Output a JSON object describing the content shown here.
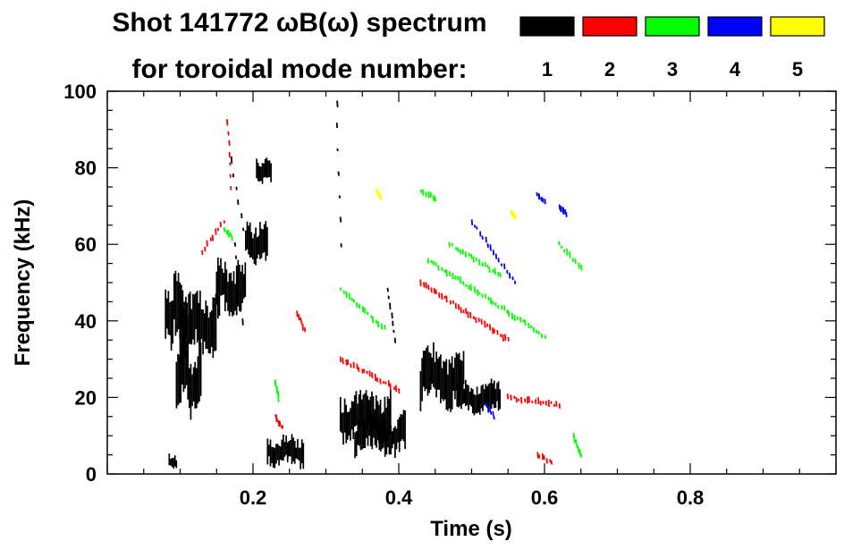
{
  "chart_data": {
    "type": "heatmap",
    "title_line1": "Shot 141772 ωB(ω) spectrum",
    "title_line2": "for toroidal mode number:",
    "xlabel": "Time (s)",
    "ylabel": "Frequency (kHz)",
    "xlim": [
      0.0,
      1.0
    ],
    "ylim": [
      0,
      100
    ],
    "x_ticks": [
      {
        "value": 0.2,
        "label": "0.2"
      },
      {
        "value": 0.4,
        "label": "0.4"
      },
      {
        "value": 0.6,
        "label": "0.6"
      },
      {
        "value": 0.8,
        "label": "0.8"
      }
    ],
    "y_ticks": [
      {
        "value": 0,
        "label": "0"
      },
      {
        "value": 20,
        "label": "20"
      },
      {
        "value": 40,
        "label": "40"
      },
      {
        "value": 60,
        "label": "60"
      },
      {
        "value": 80,
        "label": "80"
      },
      {
        "value": 100,
        "label": "100"
      }
    ],
    "legend": [
      {
        "n": "1",
        "color": "#000000"
      },
      {
        "n": "2",
        "color": "#ff0000"
      },
      {
        "n": "3",
        "color": "#00ff00"
      },
      {
        "n": "4",
        "color": "#0000ff"
      },
      {
        "n": "5",
        "color": "#ffff00"
      }
    ],
    "series": [
      {
        "name": "n=1",
        "color": "#000000",
        "blobs": [
          {
            "t": [
              0.08,
              0.11
            ],
            "f": [
              33,
              52
            ]
          },
          {
            "t": [
              0.1,
              0.15
            ],
            "f": [
              30,
              48
            ]
          },
          {
            "t": [
              0.095,
              0.13
            ],
            "f": [
              15,
              35
            ]
          },
          {
            "t": [
              0.15,
              0.19
            ],
            "f": [
              40,
              56
            ]
          },
          {
            "t": [
              0.19,
              0.22
            ],
            "f": [
              55,
              66
            ]
          },
          {
            "t": [
              0.205,
              0.225
            ],
            "f": [
              76,
              83
            ]
          },
          {
            "t": [
              0.22,
              0.27
            ],
            "f": [
              2,
              10
            ]
          },
          {
            "t": [
              0.32,
              0.39
            ],
            "f": [
              8,
              22
            ]
          },
          {
            "t": [
              0.34,
              0.41
            ],
            "f": [
              5,
              16
            ]
          },
          {
            "t": [
              0.43,
              0.49
            ],
            "f": [
              17,
              33
            ]
          },
          {
            "t": [
              0.48,
              0.54
            ],
            "f": [
              16,
              24
            ]
          },
          {
            "t": [
              0.085,
              0.095
            ],
            "f": [
              1,
              5
            ]
          }
        ],
        "streaks": [
          {
            "t": [
              0.17,
              0.19
            ],
            "f": [
              82,
              60
            ]
          },
          {
            "t": [
              0.175,
              0.185
            ],
            "f": [
              60,
              40
            ]
          },
          {
            "t": [
              0.315,
              0.32
            ],
            "f": [
              97,
              60
            ]
          },
          {
            "t": [
              0.385,
              0.395
            ],
            "f": [
              48,
              35
            ]
          }
        ]
      },
      {
        "name": "n=2",
        "color": "#ff0000",
        "streaks": [
          {
            "t": [
              0.13,
              0.16
            ],
            "f": [
              58,
              66
            ]
          },
          {
            "t": [
              0.165,
              0.17
            ],
            "f": [
              92,
              75
            ]
          },
          {
            "t": [
              0.32,
              0.4
            ],
            "f": [
              30,
              22
            ]
          },
          {
            "t": [
              0.43,
              0.55
            ],
            "f": [
              50,
              35
            ]
          },
          {
            "t": [
              0.23,
              0.24
            ],
            "f": [
              15,
              12
            ]
          },
          {
            "t": [
              0.26,
              0.27
            ],
            "f": [
              42,
              38
            ]
          },
          {
            "t": [
              0.55,
              0.62
            ],
            "f": [
              20,
              18
            ]
          },
          {
            "t": [
              0.59,
              0.61
            ],
            "f": [
              5,
              3
            ]
          }
        ]
      },
      {
        "name": "n=3",
        "color": "#00ff00",
        "streaks": [
          {
            "t": [
              0.32,
              0.38
            ],
            "f": [
              48,
              38
            ]
          },
          {
            "t": [
              0.44,
              0.6
            ],
            "f": [
              56,
              36
            ]
          },
          {
            "t": [
              0.47,
              0.54
            ],
            "f": [
              60,
              52
            ]
          },
          {
            "t": [
              0.43,
              0.45
            ],
            "f": [
              74,
              72
            ]
          },
          {
            "t": [
              0.16,
              0.17
            ],
            "f": [
              64,
              62
            ]
          },
          {
            "t": [
              0.23,
              0.235
            ],
            "f": [
              24,
              20
            ]
          },
          {
            "t": [
              0.62,
              0.65
            ],
            "f": [
              60,
              54
            ]
          },
          {
            "t": [
              0.64,
              0.65
            ],
            "f": [
              10,
              5
            ]
          }
        ]
      },
      {
        "name": "n=4",
        "color": "#0000ff",
        "streaks": [
          {
            "t": [
              0.5,
              0.56
            ],
            "f": [
              66,
              50
            ]
          },
          {
            "t": [
              0.59,
              0.6
            ],
            "f": [
              73,
              71
            ]
          },
          {
            "t": [
              0.62,
              0.63
            ],
            "f": [
              70,
              68
            ]
          },
          {
            "t": [
              0.52,
              0.53
            ],
            "f": [
              18,
              15
            ]
          }
        ]
      },
      {
        "name": "n=5",
        "color": "#ffff00",
        "streaks": [
          {
            "t": [
              0.37,
              0.375
            ],
            "f": [
              74,
              72
            ]
          },
          {
            "t": [
              0.555,
              0.56
            ],
            "f": [
              68,
              67
            ]
          }
        ]
      }
    ]
  }
}
